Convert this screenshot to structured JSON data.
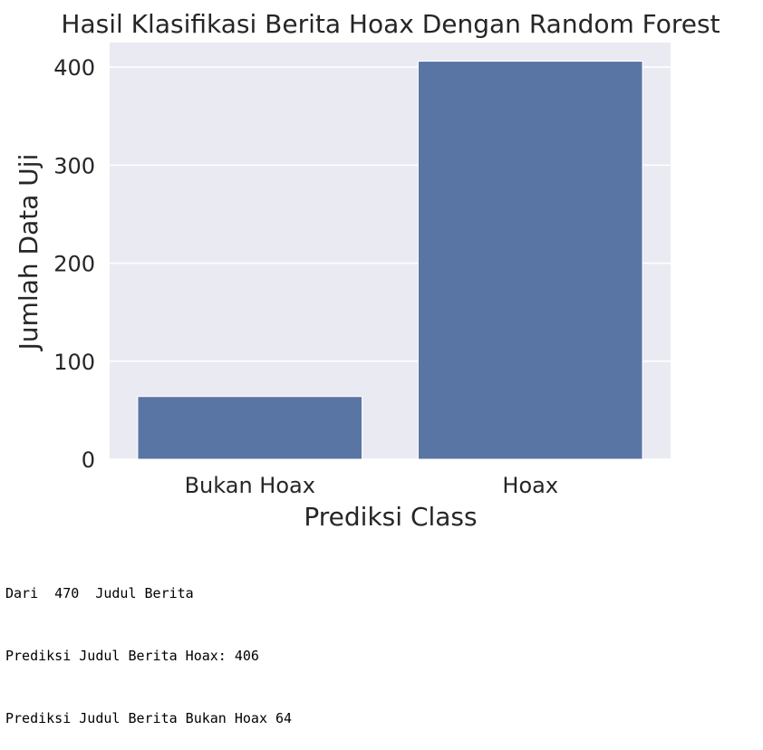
{
  "chart_data": {
    "type": "bar",
    "title": "Hasil Klasifikasi Berita Hoax Dengan Random Forest",
    "xlabel": "Prediksi Class",
    "ylabel": "Jumlah Data Uji",
    "categories": [
      "Bukan Hoax",
      "Hoax"
    ],
    "values": [
      64,
      406
    ],
    "ylim": [
      0,
      425
    ],
    "yticks": [
      0,
      100,
      200,
      300,
      400
    ],
    "grid": true,
    "colors": {
      "bar": "#5975a4",
      "background": "#eaeaf2",
      "grid": "#ffffff"
    }
  },
  "output_lines": [
    "Dari  470  Judul Berita",
    "Prediksi Judul Berita Hoax: 406",
    "Prediksi Judul Berita Bukan Hoax 64"
  ]
}
